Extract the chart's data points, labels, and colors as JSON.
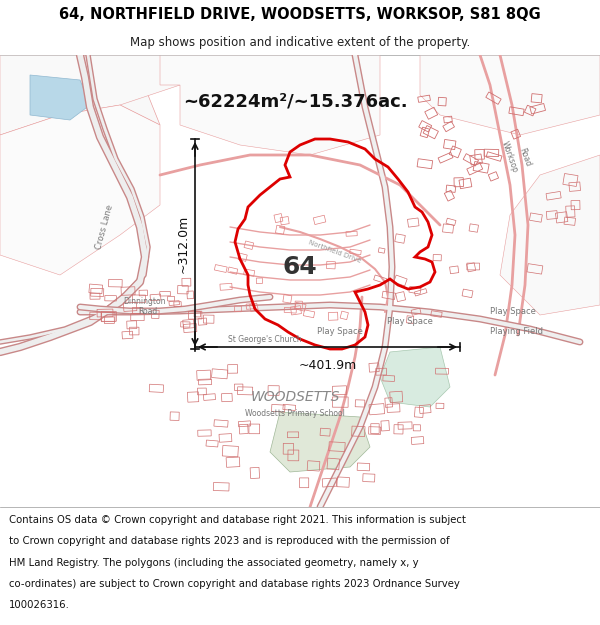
{
  "title_line1": "64, NORTHFIELD DRIVE, WOODSETTS, WORKSOP, S81 8QG",
  "title_line2": "Map shows position and indicative extent of the property.",
  "area_text": "~62224m²/~15.376ac.",
  "label_number": "64",
  "dim1_label": "~312.0m",
  "dim2_label": "~401.9m",
  "footer_lines": [
    "Contains OS data © Crown copyright and database right 2021. This information is subject",
    "to Crown copyright and database rights 2023 and is reproduced with the permission of",
    "HM Land Registry. The polygons (including the associated geometry, namely x, y",
    "co-ordinates) are subject to Crown copyright and database rights 2023 Ordnance Survey",
    "100026316."
  ],
  "map_bg": "#ffffff",
  "road_color": "#e8a0a0",
  "road_color2": "#d07070",
  "building_color": "#e09090",
  "boundary_color": "#dd0000",
  "annotation_color": "#111111",
  "label_color": "#888888",
  "woodsetts_color": "#777777",
  "green_color": "#d8ebe0",
  "blue_color": "#b8d8e8",
  "header_bg": "#ffffff",
  "footer_bg": "#ffffff"
}
